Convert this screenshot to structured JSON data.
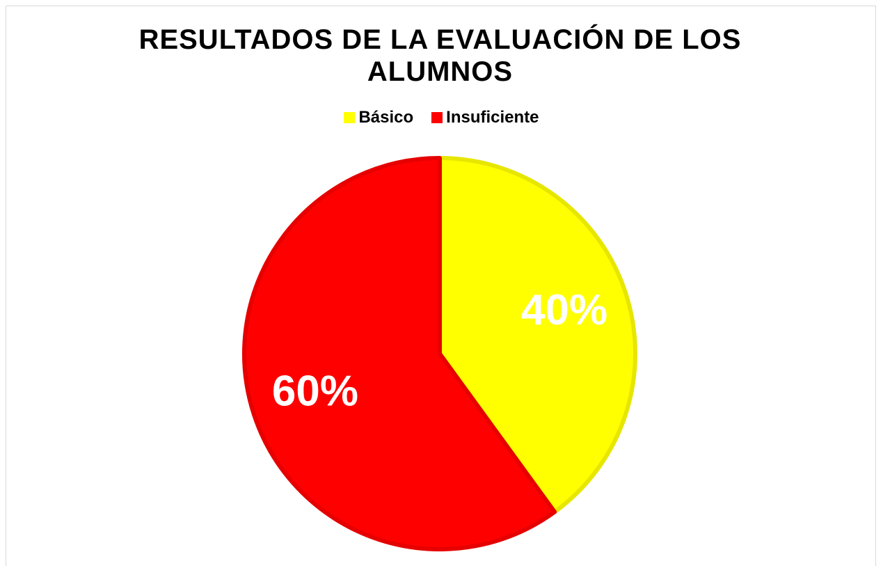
{
  "chart_data": {
    "type": "pie",
    "title": "RESULTADOS DE LA EVALUACIÓN DE LOS ALUMNOS",
    "categories": [
      "Básico",
      "Insuficiente"
    ],
    "values": [
      40,
      60
    ],
    "value_labels": [
      "40%",
      "60%"
    ],
    "colors": [
      "#ffff00",
      "#ff0000"
    ],
    "legend": "top"
  }
}
